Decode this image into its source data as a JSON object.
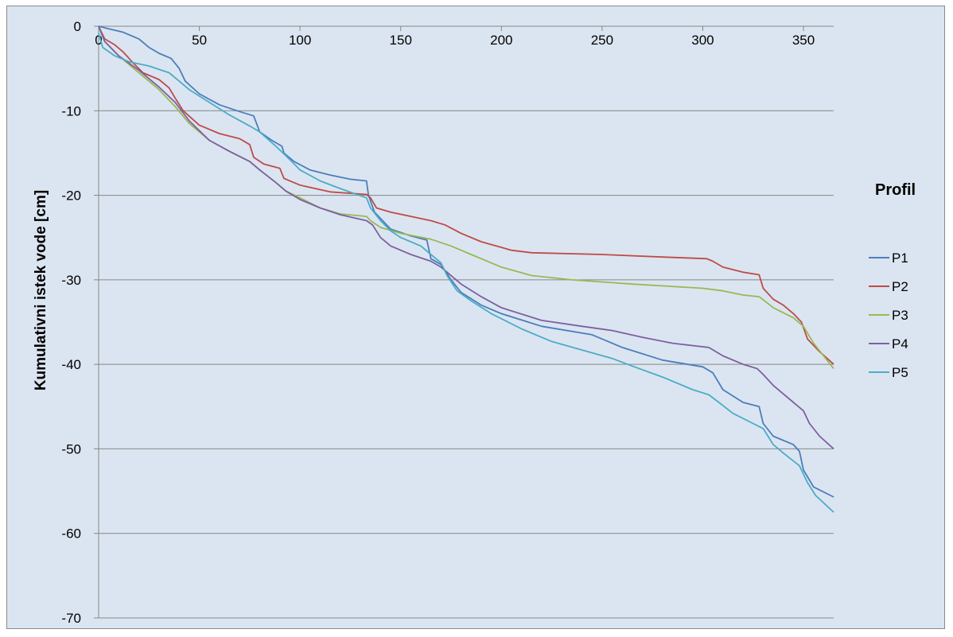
{
  "chart_data": {
    "type": "line",
    "ylabel": "Kumulativni istek vode  [cm]",
    "xlim": [
      0,
      365
    ],
    "ylim": [
      -70,
      0
    ],
    "x_ticks": [
      0,
      50,
      100,
      150,
      200,
      250,
      300,
      350
    ],
    "y_ticks": [
      0,
      -10,
      -20,
      -30,
      -40,
      -50,
      -60,
      -70
    ],
    "grid": "horizontal",
    "legend_title": "Profil",
    "legend_position": "right",
    "series": [
      {
        "name": "P1",
        "color": "#4a7ebb",
        "points": [
          [
            0,
            0
          ],
          [
            5,
            -0.3
          ],
          [
            12,
            -0.7
          ],
          [
            20,
            -1.5
          ],
          [
            25,
            -2.5
          ],
          [
            30,
            -3.2
          ],
          [
            36,
            -3.8
          ],
          [
            40,
            -5
          ],
          [
            43,
            -6.5
          ],
          [
            50,
            -8
          ],
          [
            60,
            -9.3
          ],
          [
            70,
            -10.1
          ],
          [
            77,
            -10.6
          ],
          [
            80,
            -12.5
          ],
          [
            86,
            -13.5
          ],
          [
            91,
            -14.2
          ],
          [
            92,
            -15
          ],
          [
            97,
            -16
          ],
          [
            105,
            -17
          ],
          [
            115,
            -17.6
          ],
          [
            125,
            -18.1
          ],
          [
            133,
            -18.3
          ],
          [
            134,
            -20
          ],
          [
            137,
            -22
          ],
          [
            145,
            -24
          ],
          [
            155,
            -24.8
          ],
          [
            163,
            -25.3
          ],
          [
            165,
            -27.5
          ],
          [
            170,
            -28.2
          ],
          [
            175,
            -30
          ],
          [
            180,
            -31.5
          ],
          [
            190,
            -33
          ],
          [
            200,
            -34
          ],
          [
            220,
            -35.5
          ],
          [
            245,
            -36.5
          ],
          [
            260,
            -38
          ],
          [
            280,
            -39.5
          ],
          [
            300,
            -40.3
          ],
          [
            305,
            -41
          ],
          [
            310,
            -43
          ],
          [
            320,
            -44.5
          ],
          [
            328,
            -45
          ],
          [
            330,
            -47
          ],
          [
            335,
            -48.5
          ],
          [
            345,
            -49.5
          ],
          [
            348,
            -50.3
          ],
          [
            350,
            -52.5
          ],
          [
            355,
            -54.5
          ],
          [
            365,
            -55.7
          ]
        ]
      },
      {
        "name": "P2",
        "color": "#be4b48",
        "points": [
          [
            0,
            0
          ],
          [
            3,
            -1.5
          ],
          [
            8,
            -2.2
          ],
          [
            12,
            -3
          ],
          [
            17,
            -4.3
          ],
          [
            22,
            -5.5
          ],
          [
            30,
            -6.3
          ],
          [
            35,
            -7.3
          ],
          [
            38,
            -8.5
          ],
          [
            42,
            -10
          ],
          [
            50,
            -11.7
          ],
          [
            60,
            -12.7
          ],
          [
            70,
            -13.3
          ],
          [
            75,
            -14
          ],
          [
            77,
            -15.5
          ],
          [
            82,
            -16.3
          ],
          [
            90,
            -16.8
          ],
          [
            92,
            -18
          ],
          [
            100,
            -18.8
          ],
          [
            115,
            -19.6
          ],
          [
            133,
            -19.9
          ],
          [
            135,
            -20.3
          ],
          [
            138,
            -21.5
          ],
          [
            145,
            -22
          ],
          [
            155,
            -22.5
          ],
          [
            165,
            -23
          ],
          [
            172,
            -23.5
          ],
          [
            180,
            -24.5
          ],
          [
            190,
            -25.5
          ],
          [
            205,
            -26.5
          ],
          [
            215,
            -26.8
          ],
          [
            250,
            -27
          ],
          [
            280,
            -27.3
          ],
          [
            302,
            -27.5
          ],
          [
            305,
            -27.8
          ],
          [
            310,
            -28.5
          ],
          [
            320,
            -29.1
          ],
          [
            328,
            -29.4
          ],
          [
            330,
            -31
          ],
          [
            335,
            -32.3
          ],
          [
            340,
            -33
          ],
          [
            345,
            -34
          ],
          [
            349,
            -35
          ],
          [
            352,
            -37
          ],
          [
            358,
            -38.5
          ],
          [
            365,
            -40
          ]
        ]
      },
      {
        "name": "P3",
        "color": "#98b954",
        "points": [
          [
            0,
            0
          ],
          [
            3,
            -1.8
          ],
          [
            10,
            -3.5
          ],
          [
            20,
            -5.5
          ],
          [
            30,
            -7.5
          ],
          [
            38,
            -9.5
          ],
          [
            45,
            -11.5
          ],
          [
            55,
            -13.5
          ],
          [
            65,
            -14.8
          ],
          [
            75,
            -16
          ],
          [
            80,
            -17
          ],
          [
            88,
            -18.5
          ],
          [
            93,
            -19.5
          ],
          [
            100,
            -20.3
          ],
          [
            110,
            -21.5
          ],
          [
            120,
            -22.2
          ],
          [
            133,
            -22.5
          ],
          [
            135,
            -23
          ],
          [
            140,
            -23.8
          ],
          [
            150,
            -24.5
          ],
          [
            165,
            -25.2
          ],
          [
            175,
            -26
          ],
          [
            185,
            -27
          ],
          [
            200,
            -28.5
          ],
          [
            215,
            -29.5
          ],
          [
            235,
            -30
          ],
          [
            265,
            -30.5
          ],
          [
            300,
            -31
          ],
          [
            310,
            -31.3
          ],
          [
            320,
            -31.8
          ],
          [
            328,
            -32
          ],
          [
            335,
            -33.3
          ],
          [
            345,
            -34.5
          ],
          [
            350,
            -35.5
          ],
          [
            355,
            -37.5
          ],
          [
            365,
            -40.5
          ]
        ]
      },
      {
        "name": "P4",
        "color": "#7d60a0",
        "points": [
          [
            0,
            0
          ],
          [
            3,
            -1.8
          ],
          [
            10,
            -3.5
          ],
          [
            20,
            -5.2
          ],
          [
            30,
            -7.2
          ],
          [
            38,
            -9
          ],
          [
            45,
            -11.2
          ],
          [
            55,
            -13.5
          ],
          [
            65,
            -14.8
          ],
          [
            75,
            -16
          ],
          [
            80,
            -17
          ],
          [
            88,
            -18.5
          ],
          [
            93,
            -19.5
          ],
          [
            100,
            -20.5
          ],
          [
            110,
            -21.5
          ],
          [
            120,
            -22.3
          ],
          [
            133,
            -23
          ],
          [
            136,
            -23.5
          ],
          [
            140,
            -25
          ],
          [
            145,
            -26
          ],
          [
            155,
            -27
          ],
          [
            165,
            -27.8
          ],
          [
            170,
            -28.5
          ],
          [
            180,
            -30.5
          ],
          [
            190,
            -32
          ],
          [
            200,
            -33.3
          ],
          [
            220,
            -34.8
          ],
          [
            240,
            -35.5
          ],
          [
            255,
            -36
          ],
          [
            270,
            -36.8
          ],
          [
            285,
            -37.5
          ],
          [
            303,
            -38
          ],
          [
            310,
            -39
          ],
          [
            320,
            -40
          ],
          [
            327,
            -40.5
          ],
          [
            330,
            -41.2
          ],
          [
            335,
            -42.5
          ],
          [
            345,
            -44.5
          ],
          [
            350,
            -45.5
          ],
          [
            353,
            -47
          ],
          [
            358,
            -48.5
          ],
          [
            365,
            -50
          ]
        ]
      },
      {
        "name": "P5",
        "color": "#4bacc6",
        "points": [
          [
            0,
            -0.8
          ],
          [
            2,
            -2.5
          ],
          [
            8,
            -3.5
          ],
          [
            15,
            -4.2
          ],
          [
            25,
            -4.7
          ],
          [
            35,
            -5.5
          ],
          [
            40,
            -6.5
          ],
          [
            45,
            -7.5
          ],
          [
            55,
            -9
          ],
          [
            65,
            -10.5
          ],
          [
            75,
            -11.8
          ],
          [
            80,
            -12.5
          ],
          [
            88,
            -14.2
          ],
          [
            95,
            -15.8
          ],
          [
            100,
            -17
          ],
          [
            110,
            -18.3
          ],
          [
            120,
            -19.2
          ],
          [
            133,
            -20.3
          ],
          [
            135,
            -21.5
          ],
          [
            140,
            -23
          ],
          [
            145,
            -24.2
          ],
          [
            150,
            -25
          ],
          [
            160,
            -26
          ],
          [
            165,
            -27
          ],
          [
            170,
            -28
          ],
          [
            173,
            -29.5
          ],
          [
            178,
            -31.3
          ],
          [
            185,
            -32.5
          ],
          [
            195,
            -34
          ],
          [
            210,
            -35.8
          ],
          [
            225,
            -37.3
          ],
          [
            240,
            -38.3
          ],
          [
            255,
            -39.3
          ],
          [
            265,
            -40.2
          ],
          [
            280,
            -41.5
          ],
          [
            295,
            -43
          ],
          [
            303,
            -43.6
          ],
          [
            308,
            -44.5
          ],
          [
            315,
            -45.8
          ],
          [
            325,
            -47
          ],
          [
            330,
            -47.6
          ],
          [
            335,
            -49.5
          ],
          [
            340,
            -50.5
          ],
          [
            348,
            -52
          ],
          [
            352,
            -54
          ],
          [
            356,
            -55.5
          ],
          [
            365,
            -57.5
          ]
        ]
      }
    ]
  }
}
